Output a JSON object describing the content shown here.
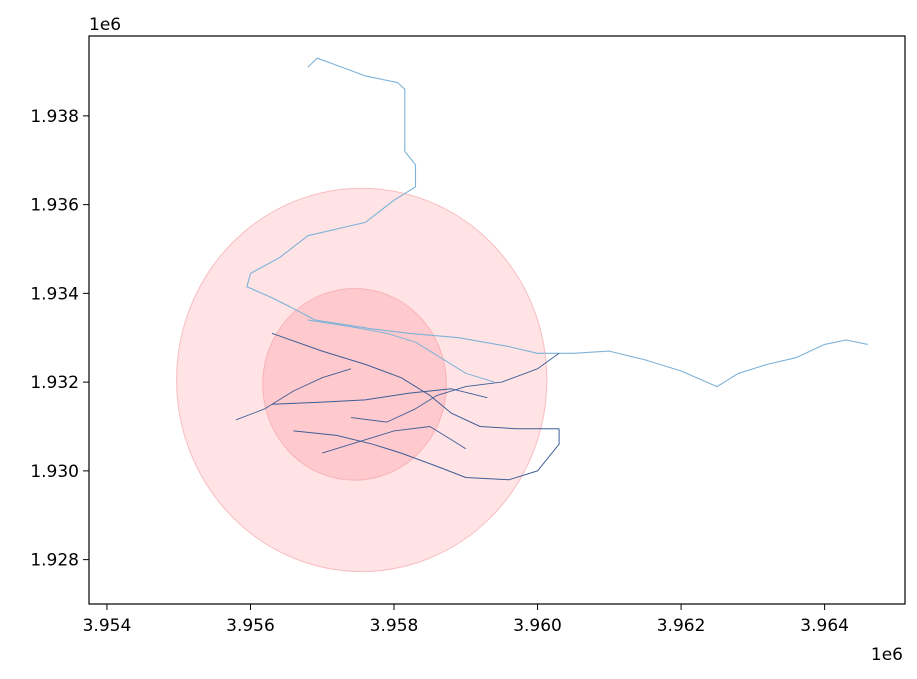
{
  "chart_data": {
    "type": "map",
    "title": "",
    "xlabel": "",
    "ylabel": "",
    "x_offset_label": "1e6",
    "y_offset_label": "1e6",
    "xlim": [
      3.95375,
      3.96512
    ],
    "ylim": [
      1.927,
      1.9398
    ],
    "x_ticks": [
      {
        "value": 3.954,
        "label": "3.954"
      },
      {
        "value": 3.956,
        "label": "3.956"
      },
      {
        "value": 3.958,
        "label": "3.958"
      },
      {
        "value": 3.96,
        "label": "3.960"
      },
      {
        "value": 3.962,
        "label": "3.962"
      },
      {
        "value": 3.964,
        "label": "3.964"
      }
    ],
    "y_ticks": [
      {
        "value": 1.928,
        "label": "1.928"
      },
      {
        "value": 1.93,
        "label": "1.930"
      },
      {
        "value": 1.932,
        "label": "1.932"
      },
      {
        "value": 1.934,
        "label": "1.934"
      },
      {
        "value": 1.936,
        "label": "1.936"
      },
      {
        "value": 1.938,
        "label": "1.938"
      }
    ],
    "grid": false,
    "buffers": [
      {
        "name": "outer",
        "center": [
          3.95755,
          1.93205
        ],
        "rx": 0.00258,
        "ry": 0.00432,
        "color": "#ffb6bb",
        "opacity": 0.38
      },
      {
        "name": "inner",
        "center": [
          3.95745,
          1.93195
        ],
        "rx": 0.00128,
        "ry": 0.00216,
        "color": "#ff9aa0",
        "opacity": 0.35
      }
    ],
    "road_colors": [
      "#3f5e96",
      "#7fb2d8",
      "#a9cbe5"
    ],
    "roads": [
      {
        "color": "#7fb2d8",
        "width": 1.1,
        "points": [
          [
            3.9568,
            1.9391
          ],
          [
            3.95693,
            1.9393
          ],
          [
            3.9571,
            1.9392
          ],
          [
            3.9576,
            1.9389
          ],
          [
            3.95805,
            1.93875
          ],
          [
            3.95815,
            1.9386
          ],
          [
            3.95815,
            1.9372
          ],
          [
            3.9583,
            1.9369
          ],
          [
            3.9583,
            1.9364
          ],
          [
            3.958,
            1.9361
          ],
          [
            3.9576,
            1.9356
          ],
          [
            3.9568,
            1.9353
          ],
          [
            3.9564,
            1.9348
          ],
          [
            3.956,
            1.93445
          ],
          [
            3.95595,
            1.93415
          ],
          [
            3.9563,
            1.9339
          ],
          [
            3.95655,
            1.9337
          ],
          [
            3.9569,
            1.9334
          ],
          [
            3.9577,
            1.9332
          ],
          [
            3.9582,
            1.9331
          ],
          [
            3.9589,
            1.933
          ],
          [
            3.9596,
            1.9328
          ],
          [
            3.96,
            1.93265
          ],
          [
            3.9605,
            1.93265
          ],
          [
            3.961,
            1.9327
          ],
          [
            3.9615,
            1.9325
          ],
          [
            3.962,
            1.93225
          ],
          [
            3.9625,
            1.9319
          ],
          [
            3.9628,
            1.9322
          ],
          [
            3.9632,
            1.9324
          ],
          [
            3.9636,
            1.93255
          ],
          [
            3.964,
            1.93285
          ],
          [
            3.9643,
            1.93295
          ],
          [
            3.9646,
            1.93285
          ]
        ]
      },
      {
        "color": "#3f5e96",
        "width": 1.0,
        "points": [
          [
            3.9563,
            1.9331
          ],
          [
            3.957,
            1.9327
          ],
          [
            3.9576,
            1.9324
          ],
          [
            3.9581,
            1.9321
          ],
          [
            3.9585,
            1.9317
          ],
          [
            3.9588,
            1.9313
          ],
          [
            3.9592,
            1.931
          ],
          [
            3.9597,
            1.93095
          ],
          [
            3.9603,
            1.93095
          ]
        ]
      },
      {
        "color": "#3f5e96",
        "width": 1.0,
        "points": [
          [
            3.9563,
            1.9315
          ],
          [
            3.957,
            1.93155
          ],
          [
            3.9576,
            1.9316
          ],
          [
            3.9582,
            1.93175
          ],
          [
            3.9588,
            1.93185
          ],
          [
            3.9593,
            1.93165
          ]
        ]
      },
      {
        "color": "#3f5e96",
        "width": 1.0,
        "points": [
          [
            3.9566,
            1.9309
          ],
          [
            3.9572,
            1.9308
          ],
          [
            3.9577,
            1.9306
          ],
          [
            3.9581,
            1.9304
          ],
          [
            3.9586,
            1.9301
          ],
          [
            3.959,
            1.92985
          ],
          [
            3.9596,
            1.9298
          ],
          [
            3.96,
            1.93
          ],
          [
            3.9603,
            1.9306
          ],
          [
            3.9603,
            1.93095
          ]
        ]
      },
      {
        "color": "#7fb2d8",
        "width": 1.0,
        "points": [
          [
            3.9568,
            1.9334
          ],
          [
            3.9574,
            1.93325
          ],
          [
            3.9579,
            1.9331
          ],
          [
            3.9583,
            1.9329
          ],
          [
            3.9587,
            1.9325
          ],
          [
            3.959,
            1.9322
          ],
          [
            3.9594,
            1.932
          ]
        ]
      },
      {
        "color": "#3f5e96",
        "width": 0.9,
        "points": [
          [
            3.9574,
            1.9312
          ],
          [
            3.9579,
            1.9311
          ],
          [
            3.9583,
            1.9314
          ],
          [
            3.9586,
            1.9317
          ],
          [
            3.959,
            1.9319
          ],
          [
            3.9595,
            1.932
          ],
          [
            3.96,
            1.9323
          ],
          [
            3.9603,
            1.93265
          ]
        ]
      },
      {
        "color": "#3f5e96",
        "width": 0.9,
        "points": [
          [
            3.957,
            1.9304
          ],
          [
            3.9574,
            1.9306
          ],
          [
            3.958,
            1.9309
          ],
          [
            3.9585,
            1.931
          ],
          [
            3.9588,
            1.9307
          ],
          [
            3.959,
            1.9305
          ]
        ]
      },
      {
        "color": "#3f5e96",
        "width": 0.9,
        "points": [
          [
            3.9558,
            1.93115
          ],
          [
            3.9562,
            1.9314
          ],
          [
            3.9566,
            1.9318
          ],
          [
            3.957,
            1.9321
          ],
          [
            3.9574,
            1.9323
          ]
        ]
      }
    ]
  }
}
